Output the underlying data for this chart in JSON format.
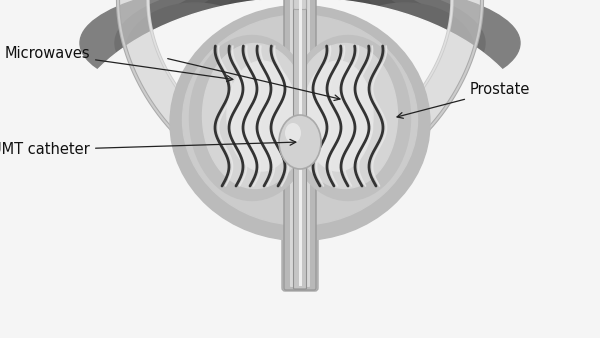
{
  "bg_color": "#f5f5f5",
  "labels": {
    "tumt": "TUMT catheter",
    "microwaves": "Microwaves",
    "prostate": "Prostate"
  },
  "label_fontsize": 10.5,
  "colors": {
    "bladder_dark1": "#606060",
    "bladder_dark2": "#707070",
    "bladder_mid": "#888888",
    "bladder_light": "#aaaaaa",
    "bladder_wall": "#c8c8c8",
    "prostate_outer": "#bbbbbb",
    "prostate_inner": "#d0d0d0",
    "lobe_outer": "#c0c0c0",
    "lobe_inner": "#d8d8d8",
    "lobe_texture": "#e8e8e8",
    "urethra_outer": "#b0b0b0",
    "urethra_inner": "#d5d5d5",
    "catheter_outer": "#c0c0c0",
    "catheter_inner": "#e8e8e8",
    "catheter_edge": "#999999",
    "balloon_fill": "#d0d0d0",
    "balloon_hl": "#eeeeee",
    "wave_dark": "#444444",
    "wave_light": "#e0e0e0",
    "arrow": "#222222",
    "white": "#ffffff"
  }
}
